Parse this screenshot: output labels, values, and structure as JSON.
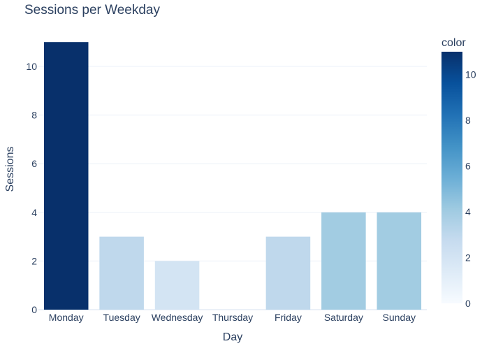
{
  "chart_data": {
    "type": "bar",
    "title": "Sessions per Weekday",
    "xlabel": "Day",
    "ylabel": "Sessions",
    "categories": [
      "Monday",
      "Tuesday",
      "Wednesday",
      "Thursday",
      "Friday",
      "Saturday",
      "Sunday"
    ],
    "values": [
      11,
      3,
      2,
      0,
      3,
      4,
      4
    ],
    "ylim": [
      0,
      11.58
    ],
    "yticks": [
      0,
      2,
      4,
      6,
      8,
      10
    ],
    "grid": true,
    "colorbar": {
      "title": "color",
      "range": [
        0,
        11
      ],
      "ticks": [
        0,
        2,
        4,
        6,
        8,
        10
      ],
      "colorscale": [
        [
          0.0,
          "#f7fbff"
        ],
        [
          0.125,
          "#deebf7"
        ],
        [
          0.25,
          "#c6dbef"
        ],
        [
          0.375,
          "#9ecae1"
        ],
        [
          0.5,
          "#6baed6"
        ],
        [
          0.625,
          "#4292c6"
        ],
        [
          0.75,
          "#2171b5"
        ],
        [
          0.875,
          "#08519c"
        ],
        [
          1.0,
          "#08306b"
        ]
      ]
    },
    "colors": {
      "text": "#2a3f5f",
      "grid": "#ebf0f8",
      "axis_line": "#ebf0f8"
    }
  }
}
